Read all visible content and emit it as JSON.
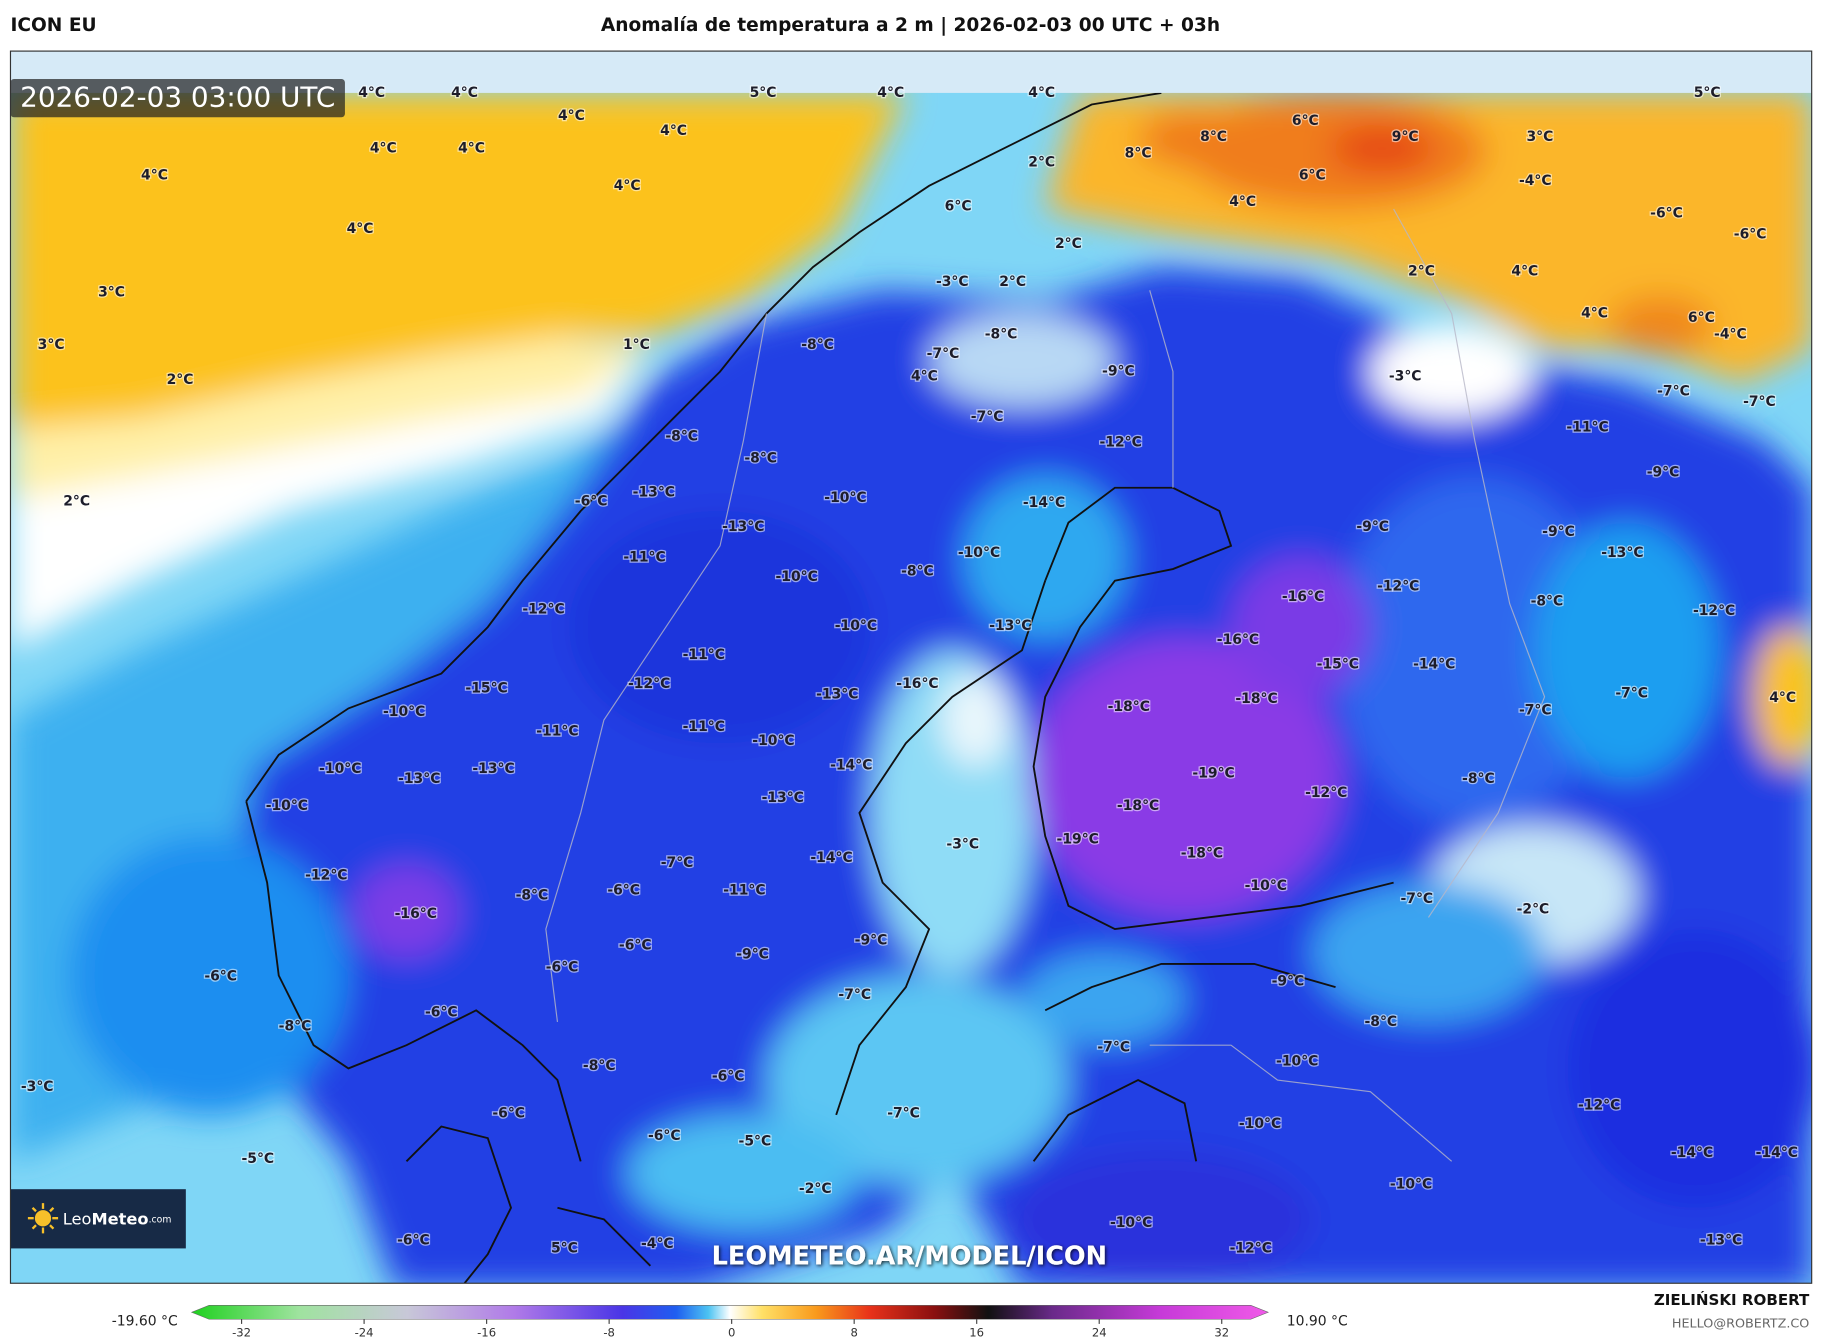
{
  "header": {
    "model": "ICON EU",
    "title": "Anomalía de temperatura a 2 m | 2026-02-03 00 UTC + 03h"
  },
  "map": {
    "timestamp": "2026-02-03 03:00 UTC",
    "labels": [
      "4°C",
      "4°C",
      "5°C",
      "4°C",
      "4°C",
      "5°C",
      "4°C",
      "4°C",
      "4°C",
      "4°C",
      "4°C",
      "4°C",
      "4°C",
      "8°C",
      "8°C",
      "6°C",
      "9°C",
      "3°C",
      "6°C",
      "4°C",
      "2°C",
      "6°C",
      "2°C",
      "-4°C",
      "-6°C",
      "-6°C",
      "3°C",
      "3°C",
      "2°C",
      "1°C",
      "2°C",
      "-3°C",
      "2°C",
      "2°C",
      "4°C",
      "4°C",
      "6°C",
      "-4°C",
      "-8°C",
      "-8°C",
      "-7°C",
      "4°C",
      "-9°C",
      "-3°C",
      "-7°C",
      "-7°C",
      "-11°C",
      "-7°C",
      "-8°C",
      "-8°C",
      "-12°C",
      "-9°C",
      "-6°C",
      "-13°C",
      "-10°C",
      "-14°C",
      "-13°C",
      "-9°C",
      "-9°C",
      "-13°C",
      "-11°C",
      "-10°C",
      "-8°C",
      "-10°C",
      "-16°C",
      "-12°C",
      "-8°C",
      "-12°C",
      "-12°C",
      "-10°C",
      "-13°C",
      "-16°C",
      "-11°C",
      "-15°C",
      "-14°C",
      "-12°C",
      "-15°C",
      "-16°C",
      "-13°C",
      "-18°C",
      "-18°C",
      "-7°C",
      "-7°C",
      "4°C",
      "-10°C",
      "-11°C",
      "-11°C",
      "-10°C",
      "-10°C",
      "-13°C",
      "-13°C",
      "-14°C",
      "-13°C",
      "-19°C",
      "-12°C",
      "-8°C",
      "-10°C",
      "-18°C",
      "-3°C",
      "-19°C",
      "-18°C",
      "-14°C",
      "-7°C",
      "-12°C",
      "-8°C",
      "-6°C",
      "-11°C",
      "-10°C",
      "-7°C",
      "-2°C",
      "-16°C",
      "-6°C",
      "-6°C",
      "-9°C",
      "-6°C",
      "-9°C",
      "-7°C",
      "-9°C",
      "-8°C",
      "-6°C",
      "-8°C",
      "-8°C",
      "-7°C",
      "-10°C",
      "-3°C",
      "-6°C",
      "-6°C",
      "-7°C",
      "-12°C",
      "-10°C",
      "-6°C",
      "-5°C",
      "-5°C",
      "-14°C",
      "-14°C",
      "-2°C",
      "-10°C",
      "-10°C",
      "-6°C",
      "5°C",
      "-4°C",
      "-12°C",
      "-13°C"
    ],
    "watermark": "LEOMETEO.AR/MODEL/ICON",
    "logo_light": "Leo",
    "logo_bold": "Meteo",
    "logo_suffix": ".com"
  },
  "colorbar": {
    "min_label": "-19.60 °C",
    "max_label": "10.90 °C",
    "ticks": [
      -32,
      -24,
      -16,
      -8,
      0,
      8,
      16,
      24,
      32
    ]
  },
  "credit": {
    "author": "ZIELIŃSKI ROBERT",
    "email": "HELLO@ROBERTZ.CO"
  }
}
